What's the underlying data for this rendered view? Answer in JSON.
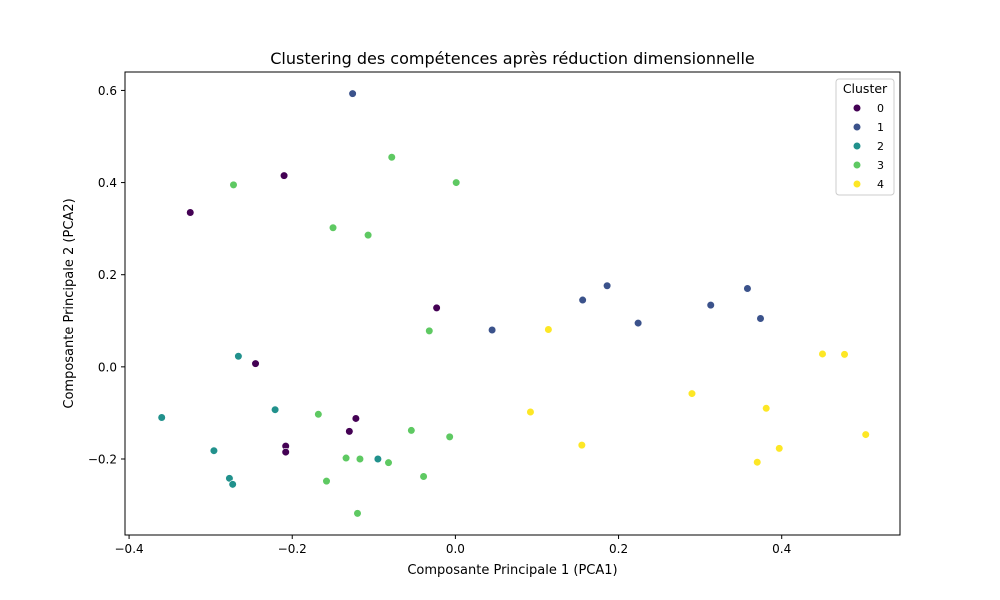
{
  "chart_data": {
    "type": "scatter",
    "title": "Clustering des compétences après réduction dimensionnelle",
    "xlabel": "Composante Principale 1 (PCA1)",
    "ylabel": "Composante Principale 2 (PCA2)",
    "xlim": [
      -0.405,
      0.545
    ],
    "ylim": [
      -0.365,
      0.64
    ],
    "xticks": [
      -0.4,
      -0.2,
      0.0,
      0.2,
      0.4
    ],
    "xtick_labels": [
      "−0.4",
      "−0.2",
      "0.0",
      "0.2",
      "0.4"
    ],
    "yticks": [
      -0.2,
      0.0,
      0.2,
      0.4,
      0.6
    ],
    "ytick_labels": [
      "−0.2",
      "0.0",
      "0.2",
      "0.4",
      "0.6"
    ],
    "grid": false,
    "legend": {
      "title": "Cluster",
      "placement": "top-right"
    },
    "series": [
      {
        "name": "0",
        "color": "#440154",
        "points": [
          [
            -0.325,
            0.335
          ],
          [
            -0.21,
            0.415
          ],
          [
            -0.245,
            0.007
          ],
          [
            -0.023,
            0.128
          ],
          [
            -0.122,
            -0.112
          ],
          [
            -0.13,
            -0.14
          ],
          [
            -0.208,
            -0.172
          ],
          [
            -0.208,
            -0.185
          ]
        ]
      },
      {
        "name": "1",
        "color": "#3b528b",
        "points": [
          [
            -0.126,
            0.593
          ],
          [
            0.045,
            0.08
          ],
          [
            0.156,
            0.145
          ],
          [
            0.186,
            0.176
          ],
          [
            0.224,
            0.095
          ],
          [
            0.313,
            0.134
          ],
          [
            0.358,
            0.17
          ],
          [
            0.374,
            0.105
          ]
        ]
      },
      {
        "name": "2",
        "color": "#21918c",
        "points": [
          [
            -0.36,
            -0.11
          ],
          [
            -0.266,
            0.023
          ],
          [
            -0.221,
            -0.093
          ],
          [
            -0.296,
            -0.182
          ],
          [
            -0.277,
            -0.242
          ],
          [
            -0.273,
            -0.255
          ],
          [
            -0.095,
            -0.2
          ]
        ]
      },
      {
        "name": "3",
        "color": "#5ec962",
        "points": [
          [
            -0.272,
            0.395
          ],
          [
            -0.078,
            0.455
          ],
          [
            0.001,
            0.4
          ],
          [
            -0.15,
            0.302
          ],
          [
            -0.107,
            0.286
          ],
          [
            -0.032,
            0.078
          ],
          [
            -0.168,
            -0.103
          ],
          [
            -0.054,
            -0.138
          ],
          [
            -0.007,
            -0.152
          ],
          [
            -0.134,
            -0.198
          ],
          [
            -0.117,
            -0.2
          ],
          [
            -0.082,
            -0.208
          ],
          [
            -0.158,
            -0.248
          ],
          [
            -0.039,
            -0.238
          ],
          [
            -0.12,
            -0.318
          ]
        ]
      },
      {
        "name": "4",
        "color": "#fde725",
        "points": [
          [
            0.114,
            0.081
          ],
          [
            0.092,
            -0.098
          ],
          [
            0.155,
            -0.17
          ],
          [
            0.29,
            -0.058
          ],
          [
            0.381,
            -0.09
          ],
          [
            0.37,
            -0.207
          ],
          [
            0.397,
            -0.177
          ],
          [
            0.45,
            0.028
          ],
          [
            0.477,
            0.027
          ],
          [
            0.503,
            -0.147
          ]
        ]
      }
    ]
  }
}
